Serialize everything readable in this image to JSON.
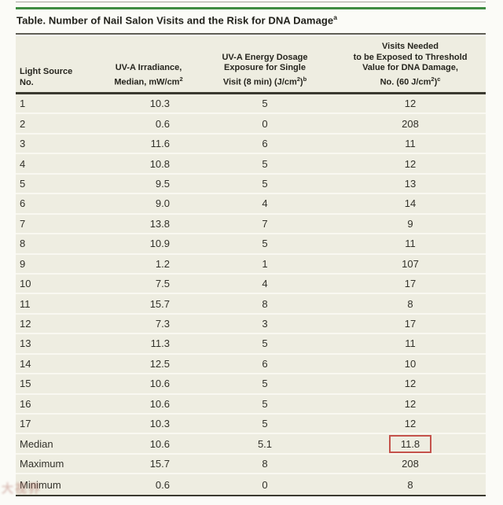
{
  "colors": {
    "green": "#3e8c42",
    "beige": "#eeede1",
    "red": "#c4524b"
  },
  "table": {
    "title": {
      "text": "Table. Number of Nail Salon Visits and the Risk for DNA Damage",
      "sup": "a"
    },
    "header": {
      "col1": {
        "line1": "Light Source",
        "line2": "No."
      },
      "col2": {
        "line1": "UV-A Irradiance,",
        "line2_t1": "Median, mW/cm",
        "line2_s1": "2"
      },
      "col3": {
        "line1": "UV-A Energy Dosage",
        "line2": "Exposure for Single",
        "line3_t1": "Visit (8 min) (J/cm",
        "line3_s1": "2",
        "line3_t2": ")",
        "line3_s2": "b"
      },
      "col4": {
        "line1": "Visits Needed",
        "line2": "to be Exposed to Threshold",
        "line3": "Value for DNA Damage,",
        "line4_t1": "No. (60 J/cm",
        "line4_s1": "2",
        "line4_t2": ")",
        "line4_s2": "c"
      }
    },
    "rows": [
      {
        "no": "1",
        "irradiance": "10.3",
        "dosage": "5",
        "visits": "12"
      },
      {
        "no": "2",
        "irradiance": "0.6",
        "dosage": "0",
        "visits": "208"
      },
      {
        "no": "3",
        "irradiance": "11.6",
        "dosage": "6",
        "visits": "11"
      },
      {
        "no": "4",
        "irradiance": "10.8",
        "dosage": "5",
        "visits": "12"
      },
      {
        "no": "5",
        "irradiance": "9.5",
        "dosage": "5",
        "visits": "13"
      },
      {
        "no": "6",
        "irradiance": "9.0",
        "dosage": "4",
        "visits": "14"
      },
      {
        "no": "7",
        "irradiance": "13.8",
        "dosage": "7",
        "visits": "9"
      },
      {
        "no": "8",
        "irradiance": "10.9",
        "dosage": "5",
        "visits": "11"
      },
      {
        "no": "9",
        "irradiance": "1.2",
        "dosage": "1",
        "visits": "107"
      },
      {
        "no": "10",
        "irradiance": "7.5",
        "dosage": "4",
        "visits": "17"
      },
      {
        "no": "11",
        "irradiance": "15.7",
        "dosage": "8",
        "visits": "8"
      },
      {
        "no": "12",
        "irradiance": "7.3",
        "dosage": "3",
        "visits": "17"
      },
      {
        "no": "13",
        "irradiance": "11.3",
        "dosage": "5",
        "visits": "11"
      },
      {
        "no": "14",
        "irradiance": "12.5",
        "dosage": "6",
        "visits": "10"
      },
      {
        "no": "15",
        "irradiance": "10.6",
        "dosage": "5",
        "visits": "12"
      },
      {
        "no": "16",
        "irradiance": "10.6",
        "dosage": "5",
        "visits": "12"
      },
      {
        "no": "17",
        "irradiance": "10.3",
        "dosage": "5",
        "visits": "12"
      }
    ],
    "summary": [
      {
        "label": "Median",
        "irradiance": "10.6",
        "dosage": "5.1",
        "visits": "11.8",
        "highlight_visits": true
      },
      {
        "label": "Maximum",
        "irradiance": "15.7",
        "dosage": "8",
        "visits": "208",
        "highlight_visits": false
      },
      {
        "label": "Minimum",
        "irradiance": "0.6",
        "dosage": "0",
        "visits": "8",
        "highlight_visits": false
      }
    ]
  },
  "watermark": {
    "text": "大视界"
  }
}
